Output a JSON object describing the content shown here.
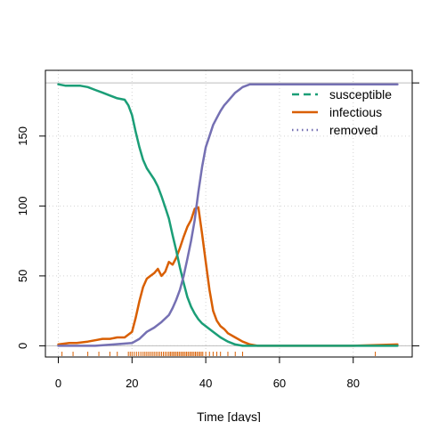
{
  "chart_data": {
    "type": "line",
    "title": "",
    "xlabel": "Time [days]",
    "ylabel": "",
    "xlim": [
      -3.5,
      96
    ],
    "ylim": [
      -8,
      197
    ],
    "x_ticks": [
      0,
      20,
      40,
      60,
      80
    ],
    "y_ticks": [
      0,
      50,
      100,
      150
    ],
    "grid": true,
    "reference_lines": {
      "top": 188,
      "bottom": 0
    },
    "legend_placement": "top-right",
    "colors": {
      "susceptible": "#1b9e77",
      "infectious": "#d95f02",
      "removed": "#7570b3",
      "reference": "#bebebe"
    },
    "series": [
      {
        "name": "susceptible",
        "legend_style": "dashed",
        "x": [
          0,
          2,
          4,
          6,
          8,
          10,
          12,
          14,
          16,
          18,
          19,
          20,
          21,
          22,
          23,
          24,
          25,
          26,
          27,
          28,
          29,
          30,
          31,
          32,
          33,
          34,
          35,
          36,
          37,
          38,
          39,
          40,
          42,
          44,
          46,
          48,
          50,
          53,
          56,
          60,
          70,
          80,
          92
        ],
        "y": [
          187,
          186,
          186,
          186,
          185,
          183,
          181,
          179,
          177,
          176,
          172,
          165,
          153,
          142,
          133,
          127,
          123,
          119,
          114,
          107,
          99,
          91,
          79,
          68,
          56,
          45,
          35,
          28,
          23,
          19,
          16,
          14,
          10,
          6,
          3,
          1,
          0,
          0,
          0,
          0,
          0,
          0,
          0
        ]
      },
      {
        "name": "infectious",
        "legend_style": "solid",
        "x": [
          0,
          3,
          5,
          8,
          10,
          12,
          14,
          16,
          18,
          20,
          21,
          22,
          23,
          24,
          25,
          26,
          27,
          28,
          29,
          30,
          31,
          32,
          33,
          34,
          35,
          36,
          37,
          38,
          39,
          40,
          41,
          42,
          43,
          44,
          45,
          46,
          48,
          50,
          52,
          54,
          60,
          70,
          80,
          92
        ],
        "y": [
          1,
          2,
          2,
          3,
          4,
          5,
          5,
          6,
          6,
          10,
          20,
          32,
          42,
          48,
          50,
          52,
          55,
          50,
          53,
          60,
          58,
          63,
          70,
          78,
          85,
          90,
          98,
          99,
          80,
          60,
          40,
          25,
          18,
          14,
          12,
          9,
          6,
          3,
          1,
          0,
          0,
          0,
          0,
          1
        ]
      },
      {
        "name": "removed",
        "legend_style": "dotted",
        "x": [
          0,
          5,
          10,
          15,
          20,
          22,
          24,
          26,
          28,
          30,
          31,
          32,
          33,
          34,
          35,
          36,
          37,
          38,
          39,
          40,
          41,
          42,
          43,
          44,
          45,
          46,
          47,
          48,
          49,
          50,
          52,
          55,
          60,
          70,
          80,
          92
        ],
        "y": [
          0,
          0,
          0,
          1,
          2,
          5,
          10,
          13,
          17,
          22,
          27,
          33,
          40,
          50,
          62,
          75,
          90,
          110,
          128,
          142,
          150,
          158,
          163,
          168,
          172,
          175,
          178,
          181,
          183,
          185,
          187,
          187,
          187,
          187,
          187,
          187
        ]
      }
    ],
    "rug": {
      "color": "#d95f02",
      "x": [
        1,
        4,
        8,
        11,
        14,
        16,
        19,
        19.5,
        20,
        20.6,
        21.2,
        21.8,
        22.4,
        23,
        23.5,
        24,
        24.5,
        25,
        25.5,
        26,
        26.5,
        27,
        27.5,
        28,
        28.5,
        29,
        29.5,
        30,
        30.4,
        30.8,
        31.2,
        31.6,
        32,
        32.4,
        32.8,
        33.2,
        33.6,
        34,
        34.4,
        34.8,
        35.2,
        35.6,
        36,
        36.4,
        36.8,
        37.2,
        37.6,
        38,
        38.4,
        38.8,
        39.2,
        40,
        41,
        42,
        43,
        44,
        46,
        48,
        50,
        86
      ]
    }
  }
}
